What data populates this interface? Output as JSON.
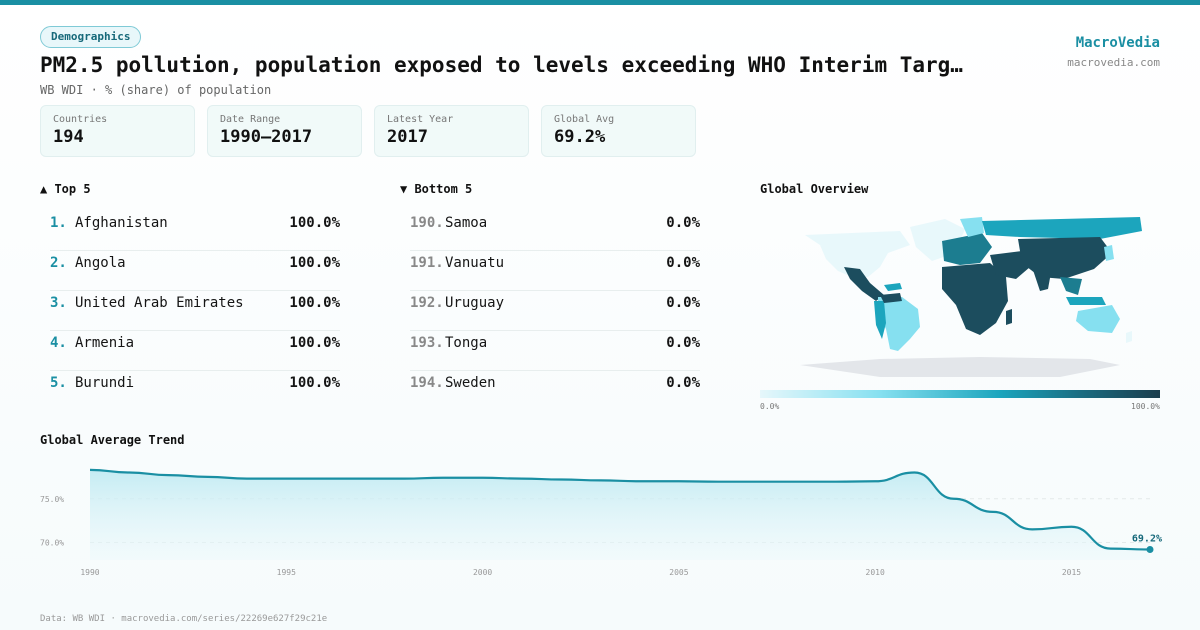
{
  "header": {
    "tag": "Demographics",
    "title": "PM2.5 pollution, population exposed to levels exceeding WHO Interim Targ…",
    "subtitle": "WB WDI · % (share) of population",
    "brand": "MacroVedia",
    "brand_url": "macrovedia.com"
  },
  "stats": [
    {
      "label": "Countries",
      "value": "194"
    },
    {
      "label": "Date Range",
      "value": "1990–2017"
    },
    {
      "label": "Latest Year",
      "value": "2017"
    },
    {
      "label": "Global Avg",
      "value": "69.2%"
    }
  ],
  "top5": {
    "title": "▲ Top 5",
    "items": [
      {
        "rank": "1.",
        "name": "Afghanistan",
        "value": "100.0%"
      },
      {
        "rank": "2.",
        "name": "Angola",
        "value": "100.0%"
      },
      {
        "rank": "3.",
        "name": "United Arab Emirates",
        "value": "100.0%"
      },
      {
        "rank": "4.",
        "name": "Armenia",
        "value": "100.0%"
      },
      {
        "rank": "5.",
        "name": "Burundi",
        "value": "100.0%"
      }
    ]
  },
  "bottom5": {
    "title": "▼ Bottom 5",
    "items": [
      {
        "rank": "190.",
        "name": "Samoa",
        "value": "0.0%"
      },
      {
        "rank": "191.",
        "name": "Vanuatu",
        "value": "0.0%"
      },
      {
        "rank": "192.",
        "name": "Uruguay",
        "value": "0.0%"
      },
      {
        "rank": "193.",
        "name": "Tonga",
        "value": "0.0%"
      },
      {
        "rank": "194.",
        "name": "Sweden",
        "value": "0.0%"
      }
    ]
  },
  "map": {
    "title": "Global Overview",
    "legend_min": "0.0%",
    "legend_max": "100.0%"
  },
  "trend": {
    "title": "Global Average Trend"
  },
  "footer": "Data: WB WDI · macrovedia.com/series/22269e627f29c21e",
  "colors": {
    "accent": "#1a8fa3",
    "line": "#1a8fa3",
    "fill": "#cdeff5"
  },
  "chart_data": {
    "type": "area",
    "x": [
      1990,
      1991,
      1992,
      1993,
      1994,
      1995,
      1996,
      1997,
      1998,
      1999,
      2000,
      2001,
      2002,
      2003,
      2004,
      2005,
      2006,
      2007,
      2008,
      2009,
      2010,
      2011,
      2012,
      2013,
      2014,
      2015,
      2016,
      2017
    ],
    "values": [
      78.3,
      78.0,
      77.7,
      77.5,
      77.3,
      77.3,
      77.3,
      77.3,
      77.3,
      77.4,
      77.4,
      77.3,
      77.2,
      77.1,
      77.0,
      77.0,
      76.95,
      76.95,
      76.95,
      76.95,
      77.0,
      78.0,
      75.0,
      73.5,
      71.5,
      71.8,
      69.3,
      69.2
    ],
    "title": "Global Average Trend",
    "xlabel": "",
    "ylabel": "",
    "xlim": [
      1990,
      2017
    ],
    "ylim": [
      68,
      80
    ],
    "yticks": [
      70,
      75
    ],
    "ytick_labels": [
      "70.0%",
      "75.0%"
    ],
    "xticks": [
      1990,
      1995,
      2000,
      2005,
      2010,
      2015
    ],
    "end_label": "69.2%",
    "grid": true
  }
}
